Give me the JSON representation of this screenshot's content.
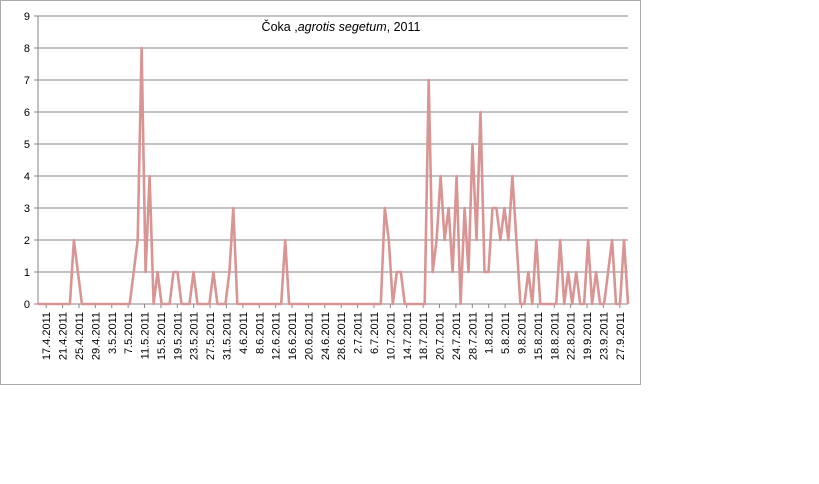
{
  "chart_data": {
    "type": "line",
    "title": "Čoka",
    "title_separator": " ,",
    "title_italic": "agrotis segetum",
    "title_suffix": ", 2011",
    "xlabel": "",
    "ylabel": "",
    "ylim": [
      0,
      9
    ],
    "yticks": [
      0,
      1,
      2,
      3,
      4,
      5,
      6,
      7,
      8,
      9
    ],
    "grid": "horizontal",
    "legend": "none",
    "line_color": "#d99594",
    "x_tick_labels": [
      "17.4.2011",
      "21.4.2011",
      "25.4.2011",
      "29.4.2011",
      "3.5.2011",
      "7.5.2011",
      "11.5.2011",
      "15.5.2011",
      "19.5.2011",
      "23.5.2011",
      "27.5.2011",
      "31.5.2011",
      "4.6.2011",
      "8.6.2011",
      "12.6.2011",
      "16.6.2011",
      "20.6.2011",
      "24.6.2011",
      "28.6.2011",
      "2.7.2011",
      "6.7.2011",
      "10.7.2011",
      "14.7.2011",
      "18.7.2011",
      "20.7.2011",
      "24.7.2011",
      "28.7.2011",
      "1.8.2011",
      "5.8.2011",
      "9.8.2011",
      "15.8.2011",
      "18.8.2011",
      "22.8.2011",
      "19.9.2011",
      "23.9.2011",
      "27.9.2011"
    ],
    "values": [
      0,
      0,
      0,
      0,
      0,
      0,
      0,
      0,
      0,
      2,
      1,
      0,
      0,
      0,
      0,
      0,
      0,
      0,
      0,
      0,
      0,
      0,
      0,
      0,
      1,
      2,
      8,
      1,
      4,
      0,
      1,
      0,
      0,
      0,
      1,
      1,
      0,
      0,
      0,
      1,
      0,
      0,
      0,
      0,
      1,
      0,
      0,
      0,
      1,
      3,
      0,
      0,
      0,
      0,
      0,
      0,
      0,
      0,
      0,
      0,
      0,
      0,
      2,
      0,
      0,
      0,
      0,
      0,
      0,
      0,
      0,
      0,
      0,
      0,
      0,
      0,
      0,
      0,
      0,
      0,
      0,
      0,
      0,
      0,
      0,
      0,
      0,
      3,
      2,
      0,
      1,
      1,
      0,
      0,
      0,
      0,
      0,
      0,
      7,
      1,
      2,
      4,
      2,
      3,
      1,
      4,
      0,
      3,
      1,
      5,
      2,
      6,
      1,
      1,
      3,
      3,
      2,
      3,
      2,
      4,
      2,
      0,
      0,
      1,
      0,
      2,
      0,
      0,
      0,
      0,
      0,
      2,
      0,
      1,
      0,
      1,
      0,
      0,
      2,
      0,
      1,
      0,
      0,
      1,
      2,
      0,
      0,
      2,
      0
    ]
  }
}
